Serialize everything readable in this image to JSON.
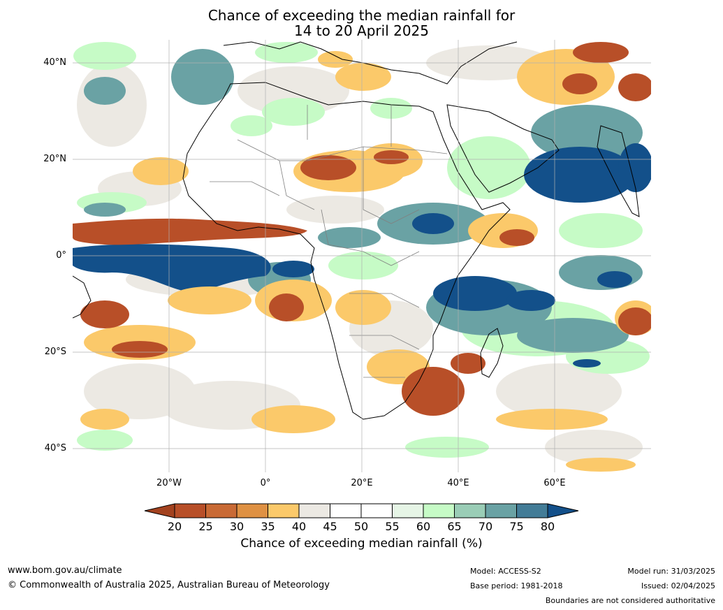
{
  "title_line1": "Chance of exceeding the median rainfall for",
  "title_line2": "14 to 20 April 2025",
  "map": {
    "region": "Africa",
    "lat_range": [
      -45,
      45
    ],
    "lon_range": [
      -40,
      80
    ],
    "lat_labels": [
      "40°N",
      "20°N",
      "0°",
      "20°S",
      "40°S"
    ],
    "lon_labels": [
      "20°W",
      "0°",
      "20°E",
      "40°E",
      "60°E"
    ],
    "ocean_color": "#ffffff",
    "land_outline_color": "#000000",
    "border_color": "#808080"
  },
  "colorbar": {
    "ticks": [
      "20",
      "25",
      "30",
      "35",
      "40",
      "45",
      "50",
      "55",
      "60",
      "65",
      "70",
      "75",
      "80"
    ],
    "colors": [
      "#a3421f",
      "#b84f28",
      "#c96a35",
      "#df9143",
      "#fbc96a",
      "#ece9e3",
      "#ffffff",
      "#ffffff",
      "#e6f5e6",
      "#c6fbc6",
      "#9acdb6",
      "#6aa2a4",
      "#437c97",
      "#13508a"
    ],
    "label": "Chance of exceeding median rainfall (%)"
  },
  "footer": {
    "website": "www.bom.gov.au/climate",
    "copyright": "© Commonwealth of Australia 2025, Australian Bureau of Meteorology",
    "model": "Model: ACCESS-S2",
    "base_period": "Base period: 1981-2018",
    "model_run": "Model run: 31/03/2025",
    "issued": "Issued: 02/04/2025",
    "disclaimer": "Boundaries are not considered authoritative"
  }
}
